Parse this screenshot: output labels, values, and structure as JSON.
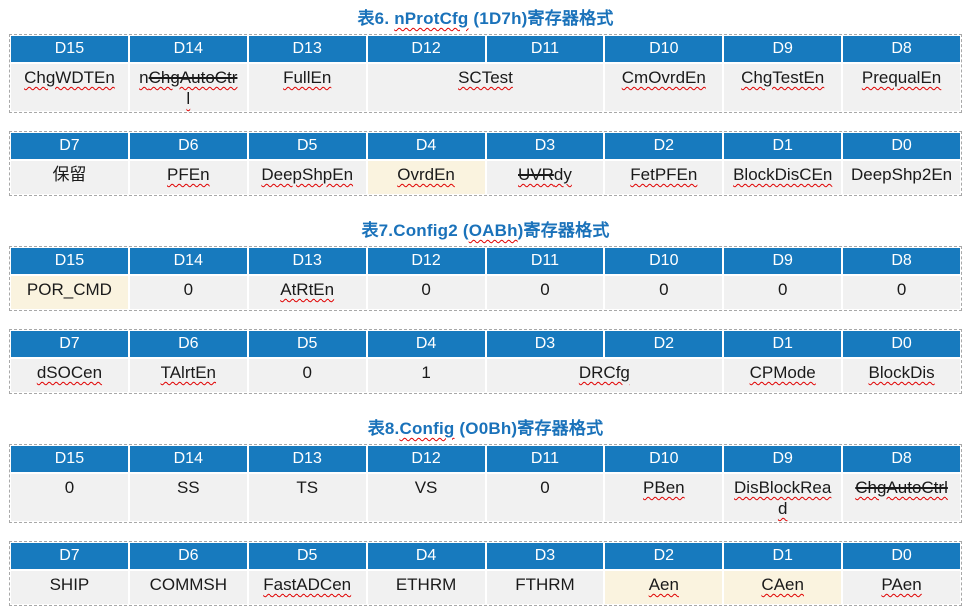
{
  "colors": {
    "title_blue": "#1a72ba",
    "header_blue": "#177abe",
    "cell_gray": "#f1f1f1",
    "cell_cream": "#faf3df",
    "squiggle_red": "#e00000"
  },
  "tables": [
    {
      "name": "table6-nProtCfg",
      "title_parts": [
        {
          "text": "表6. "
        },
        {
          "text": "nProtCfg",
          "wavy": true
        },
        {
          "text": " (1D7h)寄存器格式"
        }
      ],
      "sections": [
        {
          "headers": [
            "D15",
            "D14",
            "D13",
            "D12",
            "D11",
            "D10",
            "D9",
            "D8"
          ],
          "cells": [
            {
              "text": "ChgWDTEn",
              "wavy": true
            },
            {
              "parts": [
                {
                  "text": "n"
                },
                {
                  "text": "ChgAutoCtr",
                  "strike": true
                },
                {
                  "text": "\nl"
                }
              ],
              "wavy": true
            },
            {
              "text": "FullEn",
              "wavy": true
            },
            {
              "text": "SCTest",
              "span": 2,
              "wavy": true
            },
            {
              "text": "CmOvrdEn",
              "wavy": true
            },
            {
              "text": "ChgTestEn",
              "wavy": true
            },
            {
              "text": "PrequalEn",
              "wavy": true
            }
          ]
        },
        {
          "headers": [
            "D7",
            "D6",
            "D5",
            "D4",
            "D3",
            "D2",
            "D1",
            "D0"
          ],
          "cells": [
            {
              "text": "保留"
            },
            {
              "text": "PFEn",
              "wavy": true
            },
            {
              "text": "DeepShpEn",
              "wavy": true
            },
            {
              "text": "OvrdEn",
              "wavy": true,
              "bg": "cream"
            },
            {
              "parts": [
                {
                  "text": "UVR",
                  "strike": true
                },
                {
                  "text": "dy"
                }
              ],
              "wavy": true
            },
            {
              "text": "FetPFEn",
              "wavy": true
            },
            {
              "text": "BlockDisCEn",
              "wavy": true
            },
            {
              "text": "DeepShp2En"
            }
          ]
        }
      ]
    },
    {
      "name": "table7-Config2",
      "title_parts": [
        {
          "text": "表7.Config2 ("
        },
        {
          "text": "OABh",
          "wavy": true
        },
        {
          "text": ")寄存器格式"
        }
      ],
      "sections": [
        {
          "headers": [
            "D15",
            "D14",
            "D13",
            "D12",
            "D11",
            "D10",
            "D9",
            "D8"
          ],
          "cells": [
            {
              "text": "POR_CMD",
              "bg": "cream"
            },
            {
              "text": "0"
            },
            {
              "text": "AtRtEn",
              "wavy": true
            },
            {
              "text": "0"
            },
            {
              "text": "0"
            },
            {
              "text": "0"
            },
            {
              "text": "0"
            },
            {
              "text": "0"
            }
          ]
        },
        {
          "headers": [
            "D7",
            "D6",
            "D5",
            "D4",
            "D3",
            "D2",
            "D1",
            "D0"
          ],
          "cells": [
            {
              "text": "dSOCen",
              "wavy": true
            },
            {
              "text": "TAlrtEn",
              "wavy": true
            },
            {
              "text": "0"
            },
            {
              "text": "1"
            },
            {
              "text": "DRCfg",
              "span": 2,
              "wavy": true
            },
            {
              "text": "CPMode",
              "wavy": true
            },
            {
              "text": "BlockDis",
              "wavy": true
            }
          ]
        }
      ]
    },
    {
      "name": "table8-Config",
      "title_parts": [
        {
          "text": "表8."
        },
        {
          "text": "Config",
          "wavy": true
        },
        {
          "text": " (O0Bh)寄存器格式"
        }
      ],
      "sections": [
        {
          "headers": [
            "D15",
            "D14",
            "D13",
            "D12",
            "D11",
            "D10",
            "D9",
            "D8"
          ],
          "cells": [
            {
              "text": "0"
            },
            {
              "text": "SS"
            },
            {
              "text": "TS"
            },
            {
              "text": "VS"
            },
            {
              "text": "0"
            },
            {
              "text": "PBen",
              "wavy": true
            },
            {
              "text": "DisBlockRea\nd",
              "wavy": true
            },
            {
              "parts": [
                {
                  "text": "ChgAutoCtrl",
                  "strike": true
                }
              ],
              "wavy": true
            }
          ]
        },
        {
          "headers": [
            "D7",
            "D6",
            "D5",
            "D4",
            "D3",
            "D2",
            "D1",
            "D0"
          ],
          "cells": [
            {
              "text": "SHIP"
            },
            {
              "text": "COMMSH"
            },
            {
              "text": "FastADCen",
              "wavy": true
            },
            {
              "text": "ETHRM"
            },
            {
              "text": "FTHRM"
            },
            {
              "text": "Aen",
              "wavy": true,
              "bg": "cream"
            },
            {
              "text": "CAen",
              "wavy": true,
              "bg": "cream"
            },
            {
              "text": "PAen",
              "wavy": true
            }
          ]
        }
      ]
    }
  ]
}
